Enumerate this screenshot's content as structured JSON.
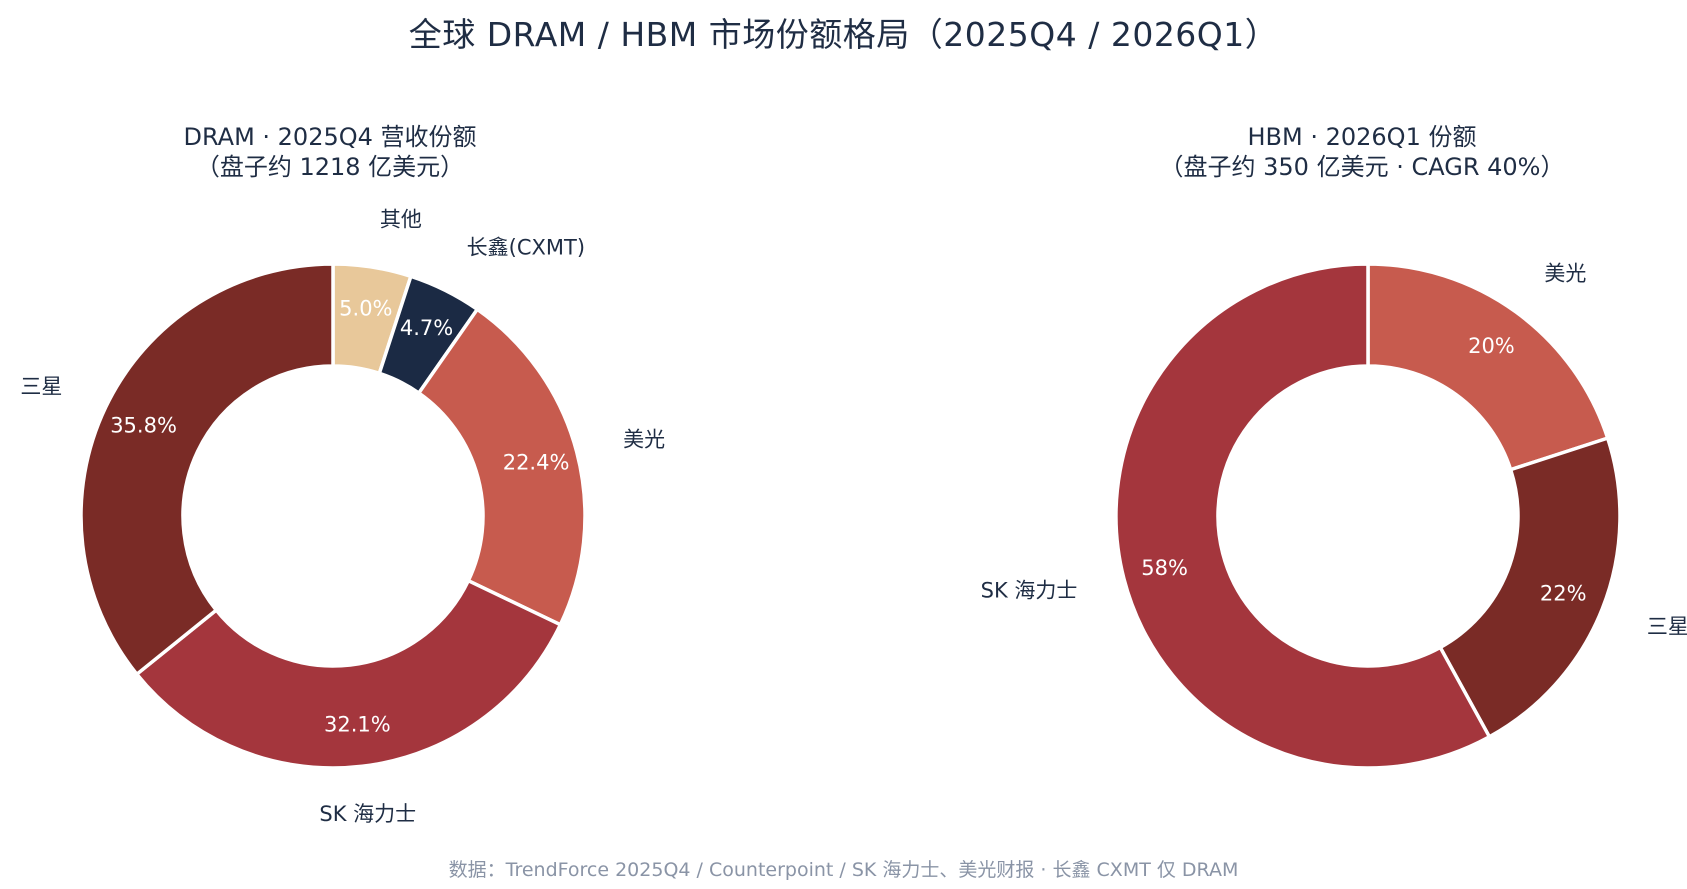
{
  "title": "全球 DRAM / HBM 市场份额格局（2025Q4 / 2026Q1）",
  "footer": "数据：TrendForce 2025Q4 / Counterpoint / SK 海力士、美光财报 · 长鑫 CXMT 仅 DRAM",
  "chart_data": [
    {
      "type": "pie",
      "title": "DRAM · 2025Q4 营收份额",
      "subtitle": "（盘子约 1218 亿美元）",
      "start_angle": 90,
      "direction": "clockwise",
      "slices": [
        {
          "label": "其他",
          "value": 5.0,
          "value_label": "5.0%",
          "color": "#e8c89a",
          "text_color": "#ffffff"
        },
        {
          "label": "长鑫(CXMT)",
          "value": 4.7,
          "value_label": "4.7%",
          "color": "#1b2a44",
          "text_color": "#ffffff"
        },
        {
          "label": "美光",
          "value": 22.4,
          "value_label": "22.4%",
          "color": "#c75b4e",
          "text_color": "#ffffff"
        },
        {
          "label": "SK 海力士",
          "value": 32.1,
          "value_label": "32.1%",
          "color": "#a4363d",
          "text_color": "#ffffff"
        },
        {
          "label": "三星",
          "value": 35.8,
          "value_label": "35.8%",
          "color": "#7a2b26",
          "text_color": "#ffffff"
        }
      ]
    },
    {
      "type": "pie",
      "title": "HBM · 2026Q1 份额",
      "subtitle": "（盘子约 350 亿美元 · CAGR 40%）",
      "start_angle": 90,
      "direction": "clockwise",
      "slices": [
        {
          "label": "美光",
          "value": 20,
          "value_label": "20%",
          "color": "#c75b4e",
          "text_color": "#ffffff"
        },
        {
          "label": "三星",
          "value": 22,
          "value_label": "22%",
          "color": "#7a2b26",
          "text_color": "#ffffff"
        },
        {
          "label": "SK 海力士",
          "value": 58,
          "value_label": "58%",
          "color": "#a4363d",
          "text_color": "#ffffff"
        }
      ]
    }
  ]
}
